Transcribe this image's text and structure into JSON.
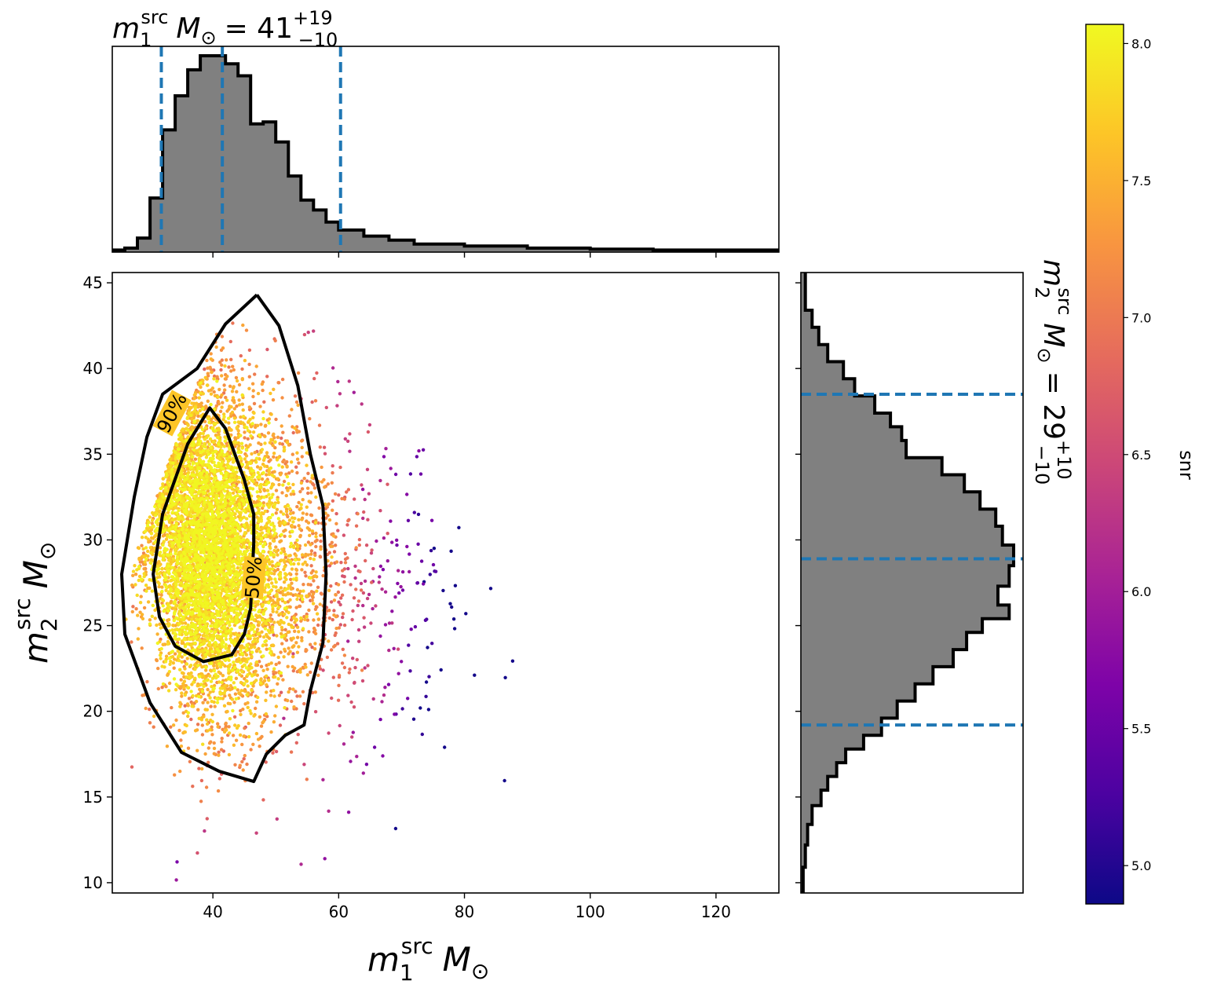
{
  "chart_data": {
    "type": "scatter",
    "layout": "corner plot with marginal histograms and colorbar",
    "title_m1": {
      "symbol": "m",
      "sub": "1",
      "sup": "src",
      "unit": "M",
      "unit_sub": "⊙",
      "eq": "= 41",
      "plus": "+19",
      "minus": "−10"
    },
    "title_m2": {
      "symbol": "m",
      "sub": "2",
      "sup": "src",
      "unit": "M",
      "unit_sub": "⊙",
      "eq": "= 29",
      "plus": "+10",
      "minus": "−10"
    },
    "xlabel": {
      "symbol": "m",
      "sub": "1",
      "sup": "src",
      "unit": "M",
      "unit_sub": "⊙"
    },
    "ylabel": {
      "symbol": "m",
      "sub": "2",
      "sup": "src",
      "unit": "M",
      "unit_sub": "⊙"
    },
    "colorbar_label": "snr",
    "xlim": [
      24,
      130
    ],
    "ylim": [
      9.4,
      45.6
    ],
    "x_ticks": [
      40,
      60,
      80,
      100,
      120
    ],
    "y_ticks": [
      10,
      15,
      20,
      25,
      30,
      35,
      40,
      45
    ],
    "color_range": [
      4.86,
      8.07
    ],
    "colorbar_ticks": [
      5.0,
      5.5,
      6.0,
      6.5,
      7.0,
      7.5,
      8.0
    ],
    "colormap": "plasma",
    "m1_quantiles": [
      31.8,
      41.5,
      60.3
    ],
    "m2_quantiles": [
      19.2,
      28.9,
      38.5
    ],
    "histogram_color": "#808080",
    "quantile_line_color": "#1f77b4",
    "m1_histogram": {
      "edges": [
        24.0,
        26.0,
        28.0,
        30.0,
        32.0,
        34.0,
        36.0,
        38.0,
        40.0,
        42.0,
        44.0,
        46.0,
        48.0,
        50.0,
        52.0,
        54.0,
        56.0,
        58.0,
        60.0,
        64.0,
        68.0,
        72.0,
        80.0,
        90.0,
        100.0,
        110.0,
        130.0
      ],
      "counts": [
        0.01,
        0.02,
        0.07,
        0.27,
        0.61,
        0.78,
        0.91,
        0.98,
        0.98,
        0.94,
        0.88,
        0.64,
        0.65,
        0.55,
        0.38,
        0.26,
        0.21,
        0.15,
        0.11,
        0.08,
        0.06,
        0.04,
        0.03,
        0.02,
        0.015,
        0.01
      ]
    },
    "m2_histogram": {
      "edges": [
        9.4,
        10.9,
        12.2,
        13.4,
        14.5,
        15.4,
        16.2,
        17.0,
        17.8,
        18.6,
        19.6,
        20.6,
        21.6,
        22.6,
        23.6,
        24.6,
        25.4,
        26.2,
        27.3,
        28.5,
        29.7,
        30.8,
        31.8,
        32.8,
        33.8,
        34.8,
        35.8,
        36.6,
        37.4,
        38.4,
        39.4,
        40.4,
        41.4,
        42.4,
        43.4,
        45.6
      ],
      "counts": [
        0.01,
        0.02,
        0.03,
        0.05,
        0.09,
        0.12,
        0.16,
        0.2,
        0.28,
        0.36,
        0.43,
        0.51,
        0.59,
        0.68,
        0.74,
        0.81,
        0.93,
        0.88,
        0.93,
        0.95,
        0.9,
        0.87,
        0.8,
        0.73,
        0.63,
        0.47,
        0.45,
        0.4,
        0.33,
        0.24,
        0.19,
        0.12,
        0.08,
        0.05,
        0.02
      ]
    },
    "contours": [
      {
        "label": "90%",
        "points": [
          [
            47,
            44.3
          ],
          [
            50.5,
            42.5
          ],
          [
            53.5,
            39
          ],
          [
            55.5,
            35
          ],
          [
            57.5,
            32
          ],
          [
            58,
            28
          ],
          [
            57.5,
            24
          ],
          [
            55.5,
            21.2
          ],
          [
            54.5,
            19.2
          ],
          [
            51.5,
            18.6
          ],
          [
            48.5,
            17.5
          ],
          [
            46.5,
            15.9
          ],
          [
            41,
            16.5
          ],
          [
            35,
            17.6
          ],
          [
            30,
            20.5
          ],
          [
            26,
            24.5
          ],
          [
            25.5,
            28
          ],
          [
            27.5,
            32.5
          ],
          [
            29.5,
            36
          ],
          [
            32,
            38.5
          ],
          [
            37.5,
            40
          ],
          [
            42,
            42.6
          ],
          [
            47,
            44.3
          ]
        ],
        "label_at": [
          33.5,
          37.4
        ],
        "label_angle": -62
      },
      {
        "label": "50%",
        "points": [
          [
            46.5,
            29.8
          ],
          [
            46.5,
            31.5
          ],
          [
            45,
            33.5
          ],
          [
            42,
            36.5
          ],
          [
            39.5,
            37.7
          ],
          [
            36,
            35.6
          ],
          [
            32,
            31.5
          ],
          [
            30.5,
            28
          ],
          [
            31.5,
            25.5
          ],
          [
            34,
            23.8
          ],
          [
            38.5,
            22.9
          ],
          [
            43,
            23.3
          ],
          [
            45,
            24.5
          ],
          [
            46,
            26
          ],
          [
            46.5,
            29.8
          ]
        ],
        "label_at": [
          46.5,
          27.8
        ],
        "label_angle": -85
      }
    ],
    "points_note": "about 7000 posterior samples, dense near m1 40, m2 29, sparse tail to m1 125"
  }
}
